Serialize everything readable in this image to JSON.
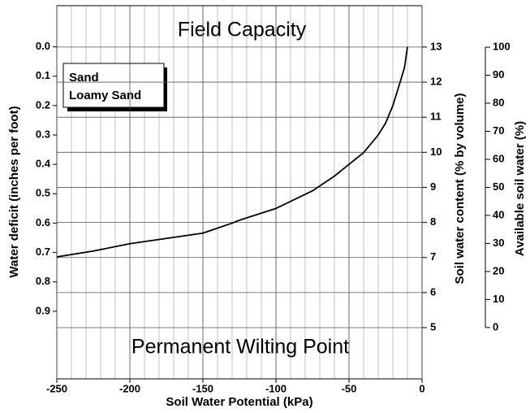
{
  "chart_data": {
    "type": "line",
    "annotations": [
      "Field Capacity",
      "Permanent Wilting Point"
    ],
    "legend_lines": [
      "Sand",
      "Loamy Sand"
    ],
    "xlabel": "Soil Water Potential (kPa)",
    "ylabel": "Water deficit (inches per foot)",
    "y2label": "Soil water content (% by volume)",
    "y3label": "Available soil water (%)",
    "xlim": [
      -250,
      0
    ],
    "xticks": [
      -250,
      -200,
      -150,
      -100,
      -50,
      0
    ],
    "minor_grid_step": 10,
    "ylim": [
      1.13,
      -0.14
    ],
    "yticks": [
      {
        "value": 0,
        "label": "0.0"
      },
      0.1,
      0.2,
      0.3,
      0.4,
      0.5,
      0.6,
      0.7,
      0.8,
      0.9
    ],
    "y2lim": [
      3.54,
      14.18
    ],
    "y2ticks": [
      5,
      6,
      7,
      8,
      9,
      10,
      11,
      12,
      13
    ],
    "y3lim": [
      -18.3,
      114.8
    ],
    "y3ticks": [
      0,
      10,
      20,
      30,
      40,
      50,
      60,
      70,
      80,
      90,
      100
    ],
    "grid": true,
    "series": [
      {
        "name": "Sand, Loamy Sand",
        "color": "#000000",
        "x": [
          -250,
          -225,
          -200,
          -175,
          -150,
          -130,
          -125,
          -100,
          -75,
          -60,
          -50,
          -40,
          -30,
          -25,
          -20,
          -15,
          -12,
          -10
        ],
        "values": [
          0.715,
          0.695,
          0.67,
          0.652,
          0.634,
          0.6,
          0.59,
          0.55,
          0.49,
          0.44,
          0.4,
          0.36,
          0.3,
          0.26,
          0.2,
          0.12,
          0.07,
          0.0
        ]
      }
    ]
  }
}
